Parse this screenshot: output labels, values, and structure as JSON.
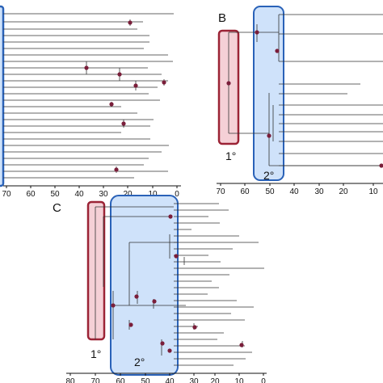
{
  "panels": {
    "A": {
      "label": "",
      "ticks": [
        "70",
        "60",
        "50",
        "40",
        "30",
        "20",
        "10",
        "0"
      ],
      "box_labels": []
    },
    "B": {
      "label": "B",
      "ticks": [
        "70",
        "60",
        "50",
        "40",
        "30",
        "20",
        "10"
      ],
      "box_labels": [
        "1°",
        "2°"
      ]
    },
    "C": {
      "label": "C",
      "ticks": [
        "80",
        "70",
        "60",
        "50",
        "40",
        "30",
        "20",
        "10",
        "0"
      ],
      "box_labels": [
        "1°",
        "2°"
      ]
    }
  },
  "colors": {
    "primary_box_stroke": "#9b2335",
    "primary_box_fill": "#f5d0d6",
    "secondary_box_stroke": "#2a62b8",
    "secondary_box_fill": "#cfe2fa",
    "node_dot": "#7a1e3a",
    "branch": "#333333"
  }
}
